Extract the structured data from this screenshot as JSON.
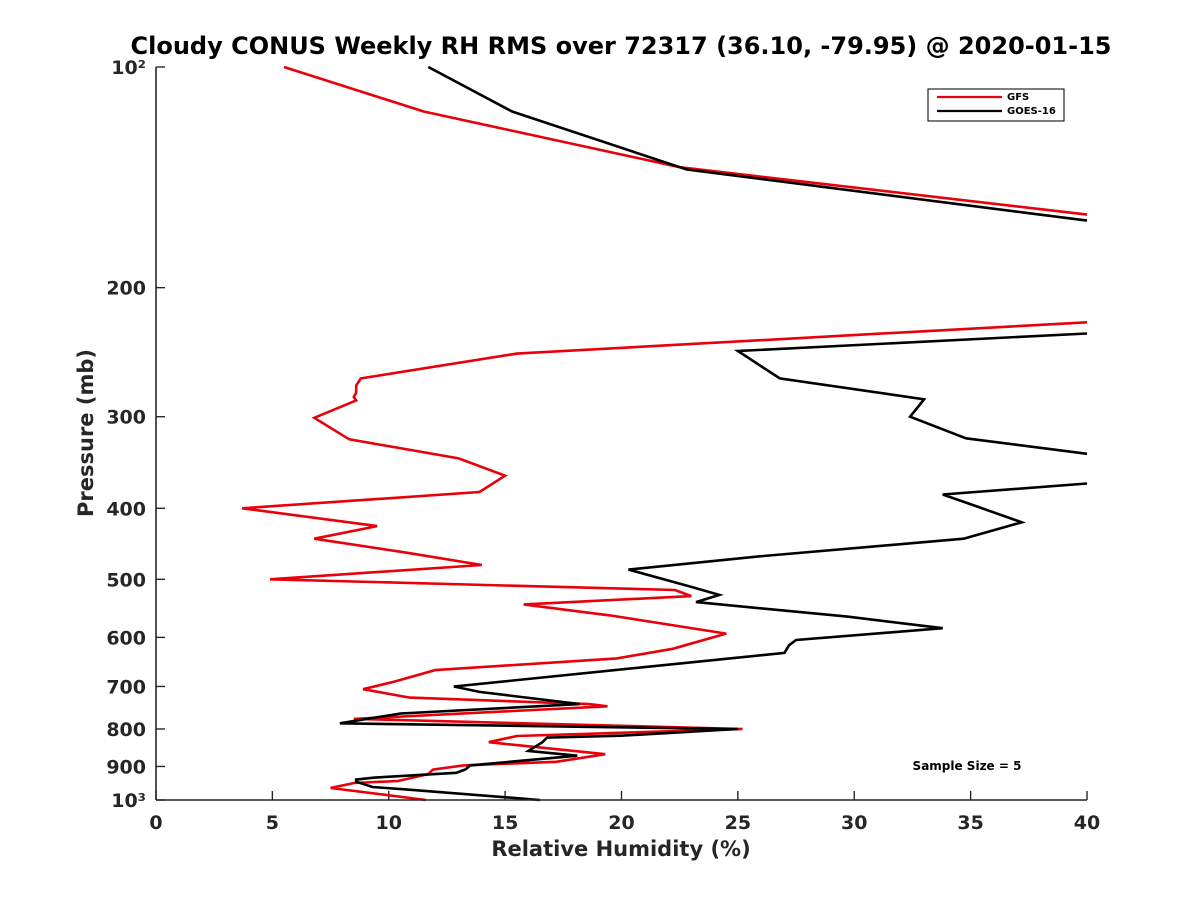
{
  "chart_data": {
    "type": "line",
    "title": "Cloudy CONUS Weekly RH RMS over 72317 (36.10, -79.95) @ 2020-01-15",
    "xlabel": "Relative Humidity (%)",
    "ylabel": "Pressure (mb)",
    "xlim": [
      0,
      40
    ],
    "ylim": [
      100,
      1000
    ],
    "y_scale": "log",
    "y_reversed": true,
    "x_ticks": [
      0,
      5,
      10,
      15,
      20,
      25,
      30,
      35,
      40
    ],
    "x_tick_labels": [
      "0",
      "5",
      "10",
      "15",
      "20",
      "25",
      "30",
      "35",
      "40"
    ],
    "y_ticks": [
      100,
      200,
      300,
      400,
      500,
      600,
      700,
      800,
      900,
      1000
    ],
    "y_tick_labels": [
      "10²",
      "200",
      "300",
      "400",
      "500",
      "600",
      "700",
      "800",
      "900",
      "10³"
    ],
    "grid": false,
    "legend_position": "top-right",
    "annotation": "Sample Size = 5",
    "series": [
      {
        "name": "GFS",
        "color": "#e8000b",
        "segments": [
          [
            [
              5.5,
              100
            ],
            [
              11.5,
              115
            ],
            [
              22.5,
              137
            ],
            [
              40,
              159
            ]
          ],
          [
            [
              40,
              223
            ],
            [
              15.5,
              246
            ],
            [
              8.8,
              266
            ],
            [
              8.6,
              272
            ],
            [
              8.6,
              278
            ],
            [
              8.5,
              282
            ],
            [
              8.6,
              285
            ],
            [
              6.8,
              301
            ],
            [
              8.3,
              322
            ],
            [
              13.0,
              342
            ],
            [
              15.0,
              361
            ],
            [
              13.9,
              380
            ],
            [
              3.7,
              400
            ],
            [
              9.5,
              423
            ],
            [
              6.8,
              440
            ],
            [
              10.8,
              460
            ],
            [
              14.0,
              478
            ],
            [
              4.9,
              500
            ],
            [
              22.3,
              517
            ],
            [
              23.0,
              527
            ],
            [
              15.8,
              541
            ],
            [
              19.5,
              560
            ],
            [
              24.5,
              593
            ],
            [
              22.2,
              622
            ],
            [
              19.8,
              641
            ],
            [
              12.0,
              665
            ],
            [
              10.2,
              690
            ],
            [
              8.9,
              706
            ],
            [
              10.9,
              725
            ],
            [
              18.6,
              740
            ],
            [
              19.4,
              745
            ],
            [
              8.5,
              775
            ],
            [
              25.2,
              800
            ],
            [
              15.5,
              818
            ],
            [
              14.3,
              834
            ],
            [
              19.3,
              866
            ],
            [
              17.2,
              887
            ],
            [
              13.2,
              897
            ],
            [
              11.9,
              909
            ],
            [
              11.7,
              922
            ],
            [
              10.4,
              942
            ],
            [
              8.5,
              948
            ],
            [
              7.5,
              963
            ],
            [
              11.6,
              1000
            ]
          ]
        ]
      },
      {
        "name": "GOES-16",
        "color": "#000000",
        "segments": [
          [
            [
              11.7,
              100
            ],
            [
              15.3,
              115
            ],
            [
              22.8,
              138
            ],
            [
              40,
              162
            ]
          ],
          [
            [
              40,
              231
            ],
            [
              25.0,
              244
            ],
            [
              26.8,
              266
            ],
            [
              33.0,
              284
            ],
            [
              32.4,
              300
            ],
            [
              34.8,
              321
            ],
            [
              40,
              337
            ]
          ],
          [
            [
              40,
              370
            ],
            [
              33.8,
              383
            ],
            [
              35.2,
              397
            ],
            [
              37.2,
              418
            ],
            [
              34.7,
              440
            ],
            [
              26.0,
              465
            ],
            [
              20.3,
              485
            ],
            [
              23.0,
              512
            ],
            [
              24.2,
              525
            ],
            [
              23.2,
              537
            ],
            [
              29.7,
              562
            ],
            [
              33.8,
              583
            ],
            [
              27.5,
              605
            ],
            [
              27.2,
              615
            ],
            [
              27.0,
              630
            ],
            [
              12.8,
              700
            ],
            [
              13.9,
              712
            ],
            [
              18.2,
              740
            ],
            [
              10.5,
              762
            ],
            [
              7.9,
              786
            ],
            [
              25.0,
              800
            ],
            [
              20.0,
              817
            ],
            [
              16.8,
              822
            ],
            [
              16.6,
              834
            ],
            [
              16.0,
              857
            ],
            [
              18.1,
              870
            ],
            [
              13.5,
              897
            ],
            [
              13.3,
              908
            ],
            [
              12.9,
              918
            ],
            [
              9.4,
              932
            ],
            [
              8.6,
              938
            ],
            [
              8.6,
              944
            ],
            [
              9.3,
              960
            ],
            [
              10.8,
              968
            ],
            [
              16.5,
              1000
            ]
          ]
        ]
      }
    ]
  }
}
